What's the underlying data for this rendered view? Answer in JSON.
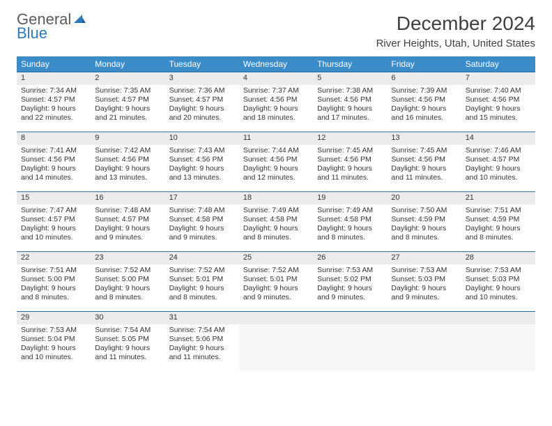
{
  "brand": {
    "line1": "General",
    "line2": "Blue"
  },
  "title": "December 2024",
  "location": "River Heights, Utah, United States",
  "colors": {
    "header_bg": "#3b8bc9",
    "header_fg": "#ffffff",
    "daynum_bg": "#ececec",
    "day_border": "#2e6ea0",
    "text": "#333333",
    "brand_gray": "#5a5a5a",
    "brand_blue": "#2e78b7"
  },
  "weekdays": [
    "Sunday",
    "Monday",
    "Tuesday",
    "Wednesday",
    "Thursday",
    "Friday",
    "Saturday"
  ],
  "weeks": [
    [
      {
        "n": "1",
        "sr": "Sunrise: 7:34 AM",
        "ss": "Sunset: 4:57 PM",
        "dl": "Daylight: 9 hours and 22 minutes."
      },
      {
        "n": "2",
        "sr": "Sunrise: 7:35 AM",
        "ss": "Sunset: 4:57 PM",
        "dl": "Daylight: 9 hours and 21 minutes."
      },
      {
        "n": "3",
        "sr": "Sunrise: 7:36 AM",
        "ss": "Sunset: 4:57 PM",
        "dl": "Daylight: 9 hours and 20 minutes."
      },
      {
        "n": "4",
        "sr": "Sunrise: 7:37 AM",
        "ss": "Sunset: 4:56 PM",
        "dl": "Daylight: 9 hours and 18 minutes."
      },
      {
        "n": "5",
        "sr": "Sunrise: 7:38 AM",
        "ss": "Sunset: 4:56 PM",
        "dl": "Daylight: 9 hours and 17 minutes."
      },
      {
        "n": "6",
        "sr": "Sunrise: 7:39 AM",
        "ss": "Sunset: 4:56 PM",
        "dl": "Daylight: 9 hours and 16 minutes."
      },
      {
        "n": "7",
        "sr": "Sunrise: 7:40 AM",
        "ss": "Sunset: 4:56 PM",
        "dl": "Daylight: 9 hours and 15 minutes."
      }
    ],
    [
      {
        "n": "8",
        "sr": "Sunrise: 7:41 AM",
        "ss": "Sunset: 4:56 PM",
        "dl": "Daylight: 9 hours and 14 minutes."
      },
      {
        "n": "9",
        "sr": "Sunrise: 7:42 AM",
        "ss": "Sunset: 4:56 PM",
        "dl": "Daylight: 9 hours and 13 minutes."
      },
      {
        "n": "10",
        "sr": "Sunrise: 7:43 AM",
        "ss": "Sunset: 4:56 PM",
        "dl": "Daylight: 9 hours and 13 minutes."
      },
      {
        "n": "11",
        "sr": "Sunrise: 7:44 AM",
        "ss": "Sunset: 4:56 PM",
        "dl": "Daylight: 9 hours and 12 minutes."
      },
      {
        "n": "12",
        "sr": "Sunrise: 7:45 AM",
        "ss": "Sunset: 4:56 PM",
        "dl": "Daylight: 9 hours and 11 minutes."
      },
      {
        "n": "13",
        "sr": "Sunrise: 7:45 AM",
        "ss": "Sunset: 4:56 PM",
        "dl": "Daylight: 9 hours and 11 minutes."
      },
      {
        "n": "14",
        "sr": "Sunrise: 7:46 AM",
        "ss": "Sunset: 4:57 PM",
        "dl": "Daylight: 9 hours and 10 minutes."
      }
    ],
    [
      {
        "n": "15",
        "sr": "Sunrise: 7:47 AM",
        "ss": "Sunset: 4:57 PM",
        "dl": "Daylight: 9 hours and 10 minutes."
      },
      {
        "n": "16",
        "sr": "Sunrise: 7:48 AM",
        "ss": "Sunset: 4:57 PM",
        "dl": "Daylight: 9 hours and 9 minutes."
      },
      {
        "n": "17",
        "sr": "Sunrise: 7:48 AM",
        "ss": "Sunset: 4:58 PM",
        "dl": "Daylight: 9 hours and 9 minutes."
      },
      {
        "n": "18",
        "sr": "Sunrise: 7:49 AM",
        "ss": "Sunset: 4:58 PM",
        "dl": "Daylight: 9 hours and 8 minutes."
      },
      {
        "n": "19",
        "sr": "Sunrise: 7:49 AM",
        "ss": "Sunset: 4:58 PM",
        "dl": "Daylight: 9 hours and 8 minutes."
      },
      {
        "n": "20",
        "sr": "Sunrise: 7:50 AM",
        "ss": "Sunset: 4:59 PM",
        "dl": "Daylight: 9 hours and 8 minutes."
      },
      {
        "n": "21",
        "sr": "Sunrise: 7:51 AM",
        "ss": "Sunset: 4:59 PM",
        "dl": "Daylight: 9 hours and 8 minutes."
      }
    ],
    [
      {
        "n": "22",
        "sr": "Sunrise: 7:51 AM",
        "ss": "Sunset: 5:00 PM",
        "dl": "Daylight: 9 hours and 8 minutes."
      },
      {
        "n": "23",
        "sr": "Sunrise: 7:52 AM",
        "ss": "Sunset: 5:00 PM",
        "dl": "Daylight: 9 hours and 8 minutes."
      },
      {
        "n": "24",
        "sr": "Sunrise: 7:52 AM",
        "ss": "Sunset: 5:01 PM",
        "dl": "Daylight: 9 hours and 8 minutes."
      },
      {
        "n": "25",
        "sr": "Sunrise: 7:52 AM",
        "ss": "Sunset: 5:01 PM",
        "dl": "Daylight: 9 hours and 9 minutes."
      },
      {
        "n": "26",
        "sr": "Sunrise: 7:53 AM",
        "ss": "Sunset: 5:02 PM",
        "dl": "Daylight: 9 hours and 9 minutes."
      },
      {
        "n": "27",
        "sr": "Sunrise: 7:53 AM",
        "ss": "Sunset: 5:03 PM",
        "dl": "Daylight: 9 hours and 9 minutes."
      },
      {
        "n": "28",
        "sr": "Sunrise: 7:53 AM",
        "ss": "Sunset: 5:03 PM",
        "dl": "Daylight: 9 hours and 10 minutes."
      }
    ],
    [
      {
        "n": "29",
        "sr": "Sunrise: 7:53 AM",
        "ss": "Sunset: 5:04 PM",
        "dl": "Daylight: 9 hours and 10 minutes."
      },
      {
        "n": "30",
        "sr": "Sunrise: 7:54 AM",
        "ss": "Sunset: 5:05 PM",
        "dl": "Daylight: 9 hours and 11 minutes."
      },
      {
        "n": "31",
        "sr": "Sunrise: 7:54 AM",
        "ss": "Sunset: 5:06 PM",
        "dl": "Daylight: 9 hours and 11 minutes."
      },
      null,
      null,
      null,
      null
    ]
  ]
}
